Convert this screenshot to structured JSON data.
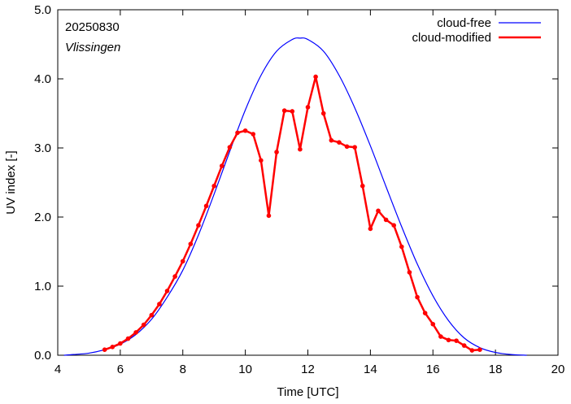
{
  "chart_data": {
    "type": "line",
    "annotation_date": "20250830",
    "annotation_location": "Vlissingen",
    "xlabel": "Time  [UTC]",
    "ylabel": "UV index  [-]",
    "xlim": [
      4,
      20
    ],
    "ylim": [
      0,
      5
    ],
    "xticks": [
      4,
      6,
      8,
      10,
      12,
      14,
      16,
      18,
      20
    ],
    "yticks": [
      0,
      1,
      2,
      3,
      4,
      5
    ],
    "ytick_labels": [
      "0.0",
      "1.0",
      "2.0",
      "3.0",
      "4.0",
      "5.0"
    ],
    "legend_position": "top-right",
    "grid": false,
    "series": [
      {
        "name": "cloud-free",
        "color": "#0000ff",
        "marker": "none",
        "x": [
          4.2,
          4.5,
          5.0,
          5.5,
          6.0,
          6.5,
          7.0,
          7.5,
          8.0,
          8.5,
          9.0,
          9.5,
          10.0,
          10.5,
          11.0,
          11.5,
          11.75,
          12.0,
          12.5,
          13.0,
          13.5,
          14.0,
          14.5,
          15.0,
          15.5,
          16.0,
          16.5,
          17.0,
          17.5,
          18.0,
          18.5,
          19.0
        ],
        "values": [
          0.0,
          0.01,
          0.03,
          0.08,
          0.16,
          0.3,
          0.52,
          0.84,
          1.23,
          1.74,
          2.33,
          2.95,
          3.55,
          4.05,
          4.4,
          4.57,
          4.59,
          4.57,
          4.4,
          4.05,
          3.58,
          3.03,
          2.44,
          1.86,
          1.32,
          0.86,
          0.5,
          0.25,
          0.11,
          0.04,
          0.01,
          0.0
        ]
      },
      {
        "name": "cloud-modified",
        "color": "#ff0000",
        "marker": "dot",
        "x": [
          5.5,
          5.75,
          6.0,
          6.25,
          6.5,
          6.75,
          7.0,
          7.25,
          7.5,
          7.75,
          8.0,
          8.25,
          8.5,
          8.75,
          9.0,
          9.25,
          9.5,
          9.75,
          10.0,
          10.25,
          10.5,
          10.75,
          11.0,
          11.25,
          11.5,
          11.75,
          12.0,
          12.25,
          12.5,
          12.75,
          13.0,
          13.25,
          13.5,
          13.75,
          14.0,
          14.25,
          14.5,
          14.75,
          15.0,
          15.25,
          15.5,
          15.75,
          16.0,
          16.25,
          16.5,
          16.75,
          17.0,
          17.25,
          17.5
        ],
        "values": [
          0.08,
          0.12,
          0.17,
          0.24,
          0.33,
          0.44,
          0.58,
          0.74,
          0.93,
          1.14,
          1.36,
          1.61,
          1.88,
          2.16,
          2.45,
          2.74,
          3.01,
          3.22,
          3.25,
          3.2,
          2.82,
          2.02,
          2.94,
          3.54,
          3.53,
          2.98,
          3.59,
          4.03,
          3.5,
          3.11,
          3.08,
          3.02,
          3.01,
          2.45,
          1.83,
          2.09,
          1.96,
          1.88,
          1.57,
          1.2,
          0.84,
          0.61,
          0.45,
          0.27,
          0.22,
          0.21,
          0.14,
          0.07,
          0.08
        ]
      }
    ]
  }
}
